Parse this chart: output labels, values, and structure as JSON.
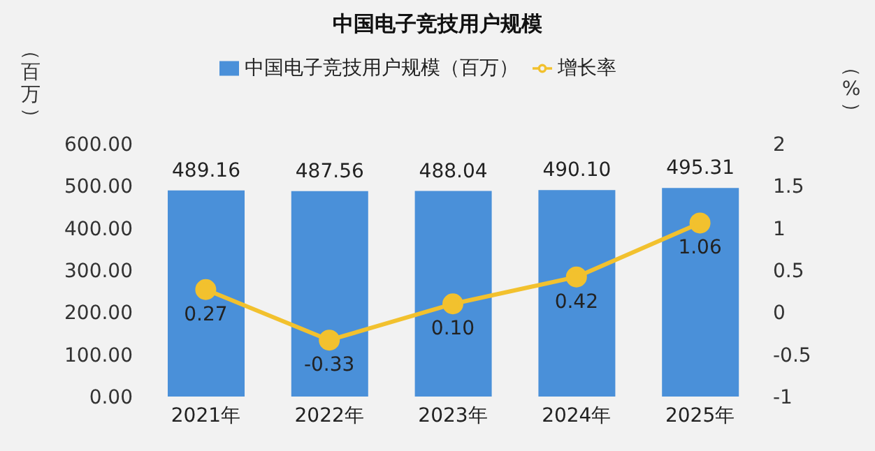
{
  "chart_data": {
    "type": "bar",
    "title": "中国电子竞技用户规模",
    "ylabel": "（百万）",
    "y2label": "（%）",
    "categories": [
      "2021年",
      "2022年",
      "2023年",
      "2024年",
      "2025年"
    ],
    "series": [
      {
        "name": "中国电子竞技用户规模（百万）",
        "color": "#4a90d9",
        "values": [
          489.16,
          487.56,
          488.04,
          490.1,
          495.31
        ],
        "value_labels": [
          "489.16",
          "487.56",
          "488.04",
          "490.10",
          "495.31"
        ]
      },
      {
        "name": "增长率",
        "type": "line",
        "axis": "y2",
        "color": "#f2c12e",
        "values": [
          0.27,
          -0.33,
          0.1,
          0.42,
          1.06
        ],
        "value_labels": [
          "0.27",
          "-0.33",
          "0.10",
          "0.42",
          "1.06"
        ]
      }
    ],
    "ylim": [
      0,
      600
    ],
    "yticks": [
      {
        "value": 0,
        "label": "0.00"
      },
      {
        "value": 100,
        "label": "100.00"
      },
      {
        "value": 200,
        "label": "200.00"
      },
      {
        "value": 300,
        "label": "300.00"
      },
      {
        "value": 400,
        "label": "400.00"
      },
      {
        "value": 500,
        "label": "500.00"
      },
      {
        "value": 600,
        "label": "600.00"
      }
    ],
    "y2lim": [
      -1,
      2
    ],
    "y2ticks": [
      -1,
      -0.5,
      0,
      0.5,
      1,
      1.5,
      2
    ],
    "grid": false,
    "legend": "top",
    "marker": "circle",
    "line_style": "solid"
  }
}
